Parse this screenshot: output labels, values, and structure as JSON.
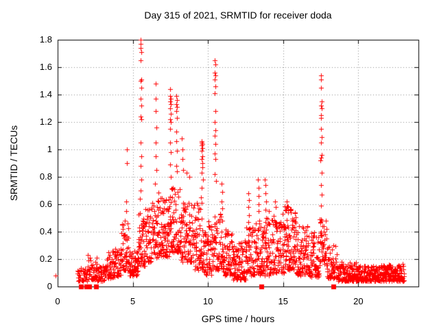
{
  "chart_data": {
    "type": "scatter",
    "title": "Day 315 of 2021, SRMTID for receiver doda",
    "xlabel": "GPS time / hours",
    "ylabel": "SRMTID / TECUs",
    "xlim": [
      0,
      24
    ],
    "ylim": [
      0,
      1.8
    ],
    "xticks": [
      {
        "v": 0,
        "label": "0"
      },
      {
        "v": 5,
        "label": "5"
      },
      {
        "v": 10,
        "label": "10"
      },
      {
        "v": 15,
        "label": "15"
      },
      {
        "v": 20,
        "label": "20"
      }
    ],
    "yticks": [
      {
        "v": 0,
        "label": "0"
      },
      {
        "v": 0.2,
        "label": "0.2"
      },
      {
        "v": 0.4,
        "label": "0.4"
      },
      {
        "v": 0.6,
        "label": "0.6"
      },
      {
        "v": 0.8,
        "label": "0.8"
      },
      {
        "v": 1,
        "label": "1"
      },
      {
        "v": 1.2,
        "label": "1.2"
      },
      {
        "v": 1.4,
        "label": "1.4"
      },
      {
        "v": 1.6,
        "label": "1.6"
      },
      {
        "v": 1.8,
        "label": "1.8"
      }
    ],
    "grid": true,
    "legend": null,
    "marker": "plus",
    "marker_color": "#ff0000",
    "grid_color": "#888888",
    "axis_color": "#000000",
    "zero_square_hours": [
      1.55,
      1.9,
      2.1,
      2.55,
      13.56,
      18.36
    ],
    "edge_points": [
      [
        -0.14,
        0.08
      ]
    ],
    "peak_points": [
      [
        4.6,
        1.0
      ],
      [
        4.63,
        0.9
      ],
      [
        4.55,
        0.62
      ],
      [
        4.58,
        0.55
      ],
      [
        5.52,
        1.8
      ],
      [
        5.54,
        1.77
      ],
      [
        5.53,
        1.74
      ],
      [
        5.55,
        1.71
      ],
      [
        5.53,
        1.65
      ],
      [
        5.55,
        1.51
      ],
      [
        5.52,
        1.5
      ],
      [
        5.56,
        1.45
      ],
      [
        5.54,
        1.37
      ],
      [
        5.57,
        1.32
      ],
      [
        5.53,
        1.24
      ],
      [
        5.55,
        1.22
      ],
      [
        5.5,
        1.05
      ],
      [
        5.56,
        0.95
      ],
      [
        5.52,
        0.88
      ],
      [
        5.58,
        0.78
      ],
      [
        5.54,
        0.7
      ],
      [
        5.49,
        0.64
      ],
      [
        6.52,
        1.48
      ],
      [
        6.54,
        1.37
      ],
      [
        6.51,
        1.28
      ],
      [
        6.55,
        1.16
      ],
      [
        6.53,
        1.05
      ],
      [
        6.52,
        0.95
      ],
      [
        6.56,
        0.85
      ],
      [
        6.5,
        0.75
      ],
      [
        7.48,
        1.44
      ],
      [
        7.5,
        1.39
      ],
      [
        7.52,
        1.37
      ],
      [
        7.47,
        1.35
      ],
      [
        7.51,
        1.33
      ],
      [
        7.49,
        1.3
      ],
      [
        7.53,
        1.26
      ],
      [
        7.48,
        1.22
      ],
      [
        7.52,
        1.2
      ],
      [
        7.5,
        1.15
      ],
      [
        7.47,
        1.05
      ],
      [
        7.53,
        0.98
      ],
      [
        7.49,
        0.89
      ],
      [
        7.51,
        0.8
      ],
      [
        7.88,
        1.39
      ],
      [
        7.92,
        1.36
      ],
      [
        7.9,
        1.33
      ],
      [
        7.94,
        1.31
      ],
      [
        7.89,
        1.28
      ],
      [
        7.93,
        1.23
      ],
      [
        7.91,
        1.13
      ],
      [
        7.88,
        1.06
      ],
      [
        7.92,
        0.99
      ],
      [
        7.9,
        0.88
      ],
      [
        7.95,
        0.84
      ],
      [
        8.28,
        1.08
      ],
      [
        8.32,
        1.0
      ],
      [
        8.3,
        0.93
      ],
      [
        8.35,
        0.85
      ],
      [
        8.6,
        0.83
      ],
      [
        8.75,
        0.8
      ],
      [
        9.58,
        1.06
      ],
      [
        9.6,
        1.05
      ],
      [
        9.62,
        1.04
      ],
      [
        9.59,
        1.03
      ],
      [
        9.63,
        1.01
      ],
      [
        9.6,
        0.99
      ],
      [
        9.65,
        0.95
      ],
      [
        9.57,
        0.93
      ],
      [
        9.61,
        0.9
      ],
      [
        9.64,
        0.87
      ],
      [
        9.58,
        0.83
      ],
      [
        9.66,
        0.78
      ],
      [
        9.6,
        0.72
      ],
      [
        9.55,
        0.65
      ],
      [
        10.46,
        1.65
      ],
      [
        10.48,
        1.62
      ],
      [
        10.45,
        1.56
      ],
      [
        10.49,
        1.54
      ],
      [
        10.47,
        1.51
      ],
      [
        10.5,
        1.46
      ],
      [
        10.44,
        1.41
      ],
      [
        10.48,
        1.28
      ],
      [
        10.46,
        1.2
      ],
      [
        10.5,
        1.14
      ],
      [
        10.45,
        1.1
      ],
      [
        10.49,
        1.04
      ],
      [
        10.47,
        0.97
      ],
      [
        10.51,
        0.93
      ],
      [
        10.46,
        0.82
      ],
      [
        10.52,
        0.77
      ],
      [
        10.92,
        0.75
      ],
      [
        10.95,
        0.69
      ],
      [
        10.9,
        0.62
      ],
      [
        10.97,
        0.57
      ],
      [
        12.68,
        0.68
      ],
      [
        12.71,
        0.63
      ],
      [
        12.69,
        0.58
      ],
      [
        12.73,
        0.52
      ],
      [
        12.7,
        0.47
      ],
      [
        12.74,
        0.42
      ],
      [
        13.34,
        0.78
      ],
      [
        13.37,
        0.72
      ],
      [
        13.35,
        0.66
      ],
      [
        13.39,
        0.6
      ],
      [
        13.36,
        0.55
      ],
      [
        13.8,
        0.78
      ],
      [
        13.83,
        0.74
      ],
      [
        13.81,
        0.68
      ],
      [
        13.85,
        0.62
      ],
      [
        13.82,
        0.56
      ],
      [
        13.86,
        0.5
      ],
      [
        14.48,
        0.62
      ],
      [
        14.52,
        0.58
      ],
      [
        15.25,
        0.62
      ],
      [
        15.32,
        0.58
      ],
      [
        17.5,
        1.54
      ],
      [
        17.53,
        1.51
      ],
      [
        17.51,
        1.45
      ],
      [
        17.55,
        1.35
      ],
      [
        17.52,
        1.32
      ],
      [
        17.56,
        1.3
      ],
      [
        17.5,
        1.25
      ],
      [
        17.54,
        1.23
      ],
      [
        17.52,
        1.15
      ],
      [
        17.57,
        1.09
      ],
      [
        17.51,
        1.05
      ],
      [
        17.55,
        0.96
      ],
      [
        17.53,
        0.94
      ],
      [
        17.49,
        0.92
      ],
      [
        17.56,
        0.83
      ],
      [
        17.52,
        0.74
      ],
      [
        17.58,
        0.67
      ],
      [
        17.5,
        0.59
      ],
      [
        17.54,
        0.49
      ],
      [
        17.6,
        0.44
      ],
      [
        17.48,
        0.39
      ]
    ],
    "cloud_segments": [
      {
        "x0": 1.3,
        "x1": 2.0,
        "ymin": 0.04,
        "ymax": 0.14,
        "n": 40,
        "bias": 1.6
      },
      {
        "x0": 2.0,
        "x1": 2.65,
        "ymin": 0.05,
        "ymax": 0.23,
        "n": 48,
        "bias": 1.8
      },
      {
        "x0": 2.65,
        "x1": 3.15,
        "ymin": 0.04,
        "ymax": 0.15,
        "n": 38,
        "bias": 1.6
      },
      {
        "x0": 3.15,
        "x1": 3.75,
        "ymin": 0.06,
        "ymax": 0.26,
        "n": 46,
        "bias": 1.8
      },
      {
        "x0": 3.75,
        "x1": 4.25,
        "ymin": 0.07,
        "ymax": 0.27,
        "n": 40,
        "bias": 1.6
      },
      {
        "x0": 4.25,
        "x1": 4.75,
        "ymin": 0.12,
        "ymax": 0.48,
        "n": 48,
        "bias": 1.5
      },
      {
        "x0": 4.75,
        "x1": 5.35,
        "ymin": 0.08,
        "ymax": 0.26,
        "n": 65,
        "bias": 1.6
      },
      {
        "x0": 5.35,
        "x1": 5.85,
        "ymin": 0.15,
        "ymax": 0.58,
        "n": 55,
        "bias": 1.5
      },
      {
        "x0": 5.85,
        "x1": 6.65,
        "ymin": 0.18,
        "ymax": 0.62,
        "n": 75,
        "bias": 1.6
      },
      {
        "x0": 6.65,
        "x1": 7.45,
        "ymin": 0.22,
        "ymax": 0.68,
        "n": 85,
        "bias": 1.5
      },
      {
        "x0": 7.45,
        "x1": 8.15,
        "ymin": 0.25,
        "ymax": 0.72,
        "n": 75,
        "bias": 1.5
      },
      {
        "x0": 8.15,
        "x1": 9.05,
        "ymin": 0.18,
        "ymax": 0.62,
        "n": 85,
        "bias": 1.5
      },
      {
        "x0": 9.05,
        "x1": 9.65,
        "ymin": 0.12,
        "ymax": 0.6,
        "n": 60,
        "bias": 1.5
      },
      {
        "x0": 9.65,
        "x1": 10.25,
        "ymin": 0.08,
        "ymax": 0.45,
        "n": 60,
        "bias": 1.5
      },
      {
        "x0": 10.25,
        "x1": 11.05,
        "ymin": 0.12,
        "ymax": 0.55,
        "n": 70,
        "bias": 1.6
      },
      {
        "x0": 11.05,
        "x1": 11.65,
        "ymin": 0.08,
        "ymax": 0.4,
        "n": 60,
        "bias": 1.6
      },
      {
        "x0": 11.65,
        "x1": 12.55,
        "ymin": 0.05,
        "ymax": 0.32,
        "n": 90,
        "bias": 1.7
      },
      {
        "x0": 12.55,
        "x1": 13.25,
        "ymin": 0.08,
        "ymax": 0.45,
        "n": 70,
        "bias": 1.6
      },
      {
        "x0": 13.25,
        "x1": 14.05,
        "ymin": 0.08,
        "ymax": 0.5,
        "n": 80,
        "bias": 1.6
      },
      {
        "x0": 14.05,
        "x1": 15.05,
        "ymin": 0.1,
        "ymax": 0.52,
        "n": 95,
        "bias": 1.6
      },
      {
        "x0": 15.05,
        "x1": 15.85,
        "ymin": 0.12,
        "ymax": 0.56,
        "n": 90,
        "bias": 1.5
      },
      {
        "x0": 15.85,
        "x1": 16.65,
        "ymin": 0.08,
        "ymax": 0.45,
        "n": 80,
        "bias": 1.6
      },
      {
        "x0": 16.65,
        "x1": 17.4,
        "ymin": 0.07,
        "ymax": 0.38,
        "n": 70,
        "bias": 1.6
      },
      {
        "x0": 17.4,
        "x1": 17.9,
        "ymin": 0.15,
        "ymax": 0.5,
        "n": 40,
        "bias": 1.4
      },
      {
        "x0": 17.9,
        "x1": 18.6,
        "ymin": 0.06,
        "ymax": 0.3,
        "n": 55,
        "bias": 1.8
      },
      {
        "x0": 18.6,
        "x1": 20.0,
        "ymin": 0.04,
        "ymax": 0.17,
        "n": 130,
        "bias": 1.7
      },
      {
        "x0": 20.0,
        "x1": 21.5,
        "ymin": 0.04,
        "ymax": 0.15,
        "n": 135,
        "bias": 1.6
      },
      {
        "x0": 21.5,
        "x1": 23.05,
        "ymin": 0.04,
        "ymax": 0.16,
        "n": 150,
        "bias": 1.5
      }
    ]
  }
}
